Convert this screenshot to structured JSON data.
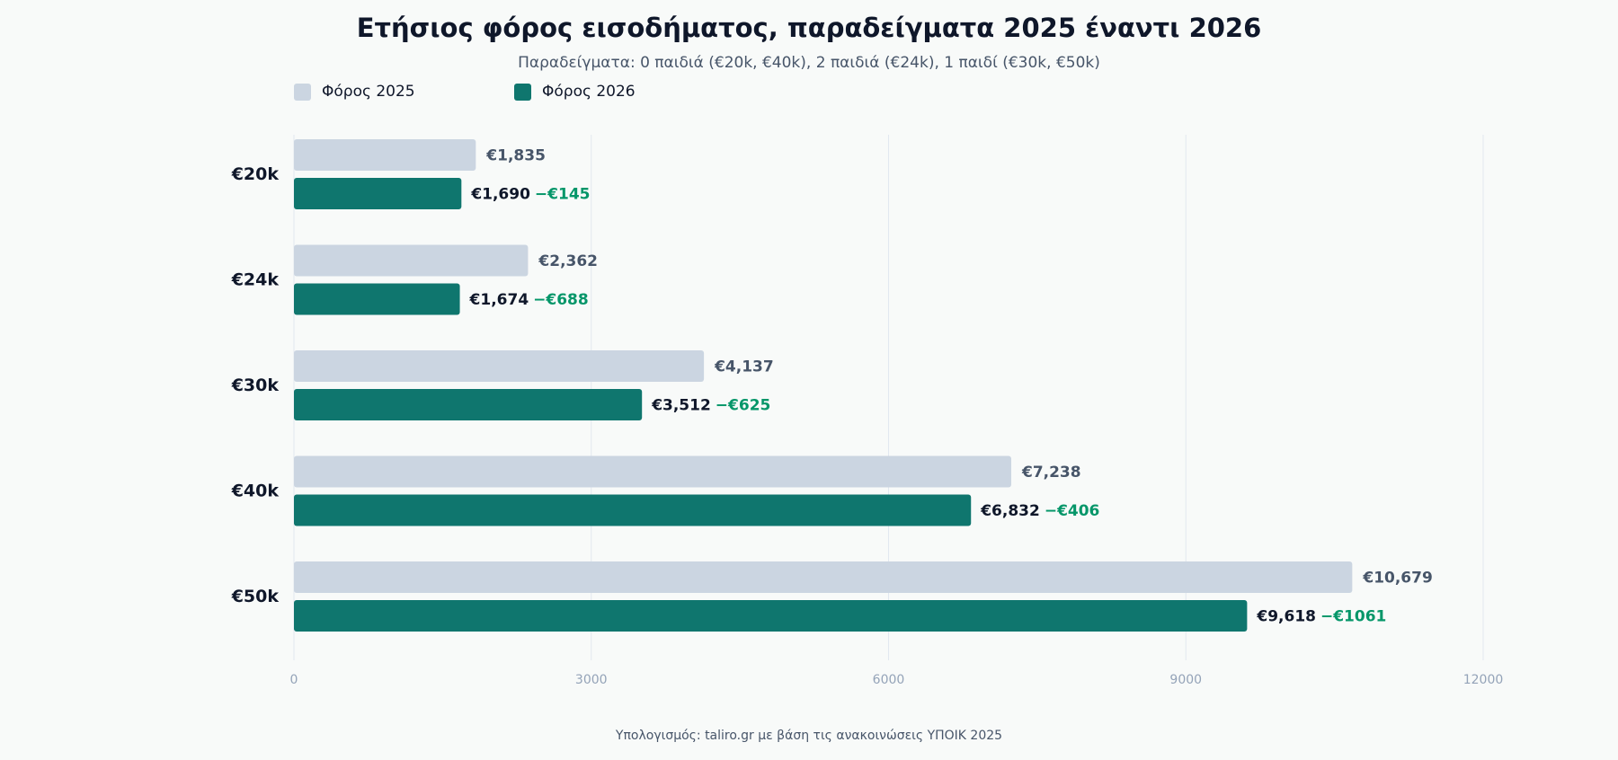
{
  "title": "Ετήσιος φόρος εισοδήματος, παραδείγματα 2025 έναντι 2026",
  "subtitle": "Παραδείγματα: 0 παιδιά (€20k, €40k), 2 παιδιά (€24k), 1 παιδί (€30k, €50k)",
  "footer": "Υπολογισμός: taliro.gr με βάση τις ανακοινώσεις ΥΠΟΙΚ 2025",
  "colors": {
    "series_2025": "#cbd5e1",
    "series_2026": "#0f766e",
    "label_2025": "#475569",
    "label_2026": "#0f172a",
    "diff": "#059669",
    "grid": "#e2e8f0",
    "tick": "#94a3b8"
  },
  "chart_data": {
    "type": "bar",
    "orientation": "horizontal",
    "categories": [
      "€20k",
      "€24k",
      "€30k",
      "€40k",
      "€50k"
    ],
    "series": [
      {
        "name": "Φόρος 2025",
        "values": [
          1835,
          2362,
          4137,
          7238,
          10679
        ],
        "labels": [
          "€1,835",
          "€2,362",
          "€4,137",
          "€7,238",
          "€10,679"
        ]
      },
      {
        "name": "Φόρος 2026",
        "values": [
          1690,
          1674,
          3512,
          6832,
          9618
        ],
        "labels": [
          "€1,690",
          "€1,674",
          "€3,512",
          "€6,832",
          "€9,618"
        ],
        "diff_labels": [
          "−€145",
          "−€688",
          "−€625",
          "−€406",
          "−€1061"
        ]
      }
    ],
    "xlim": [
      0,
      12000
    ],
    "xticks": [
      "0",
      "3000",
      "6000",
      "9000",
      "12000"
    ],
    "grid": true,
    "legend_position": "top-left"
  }
}
